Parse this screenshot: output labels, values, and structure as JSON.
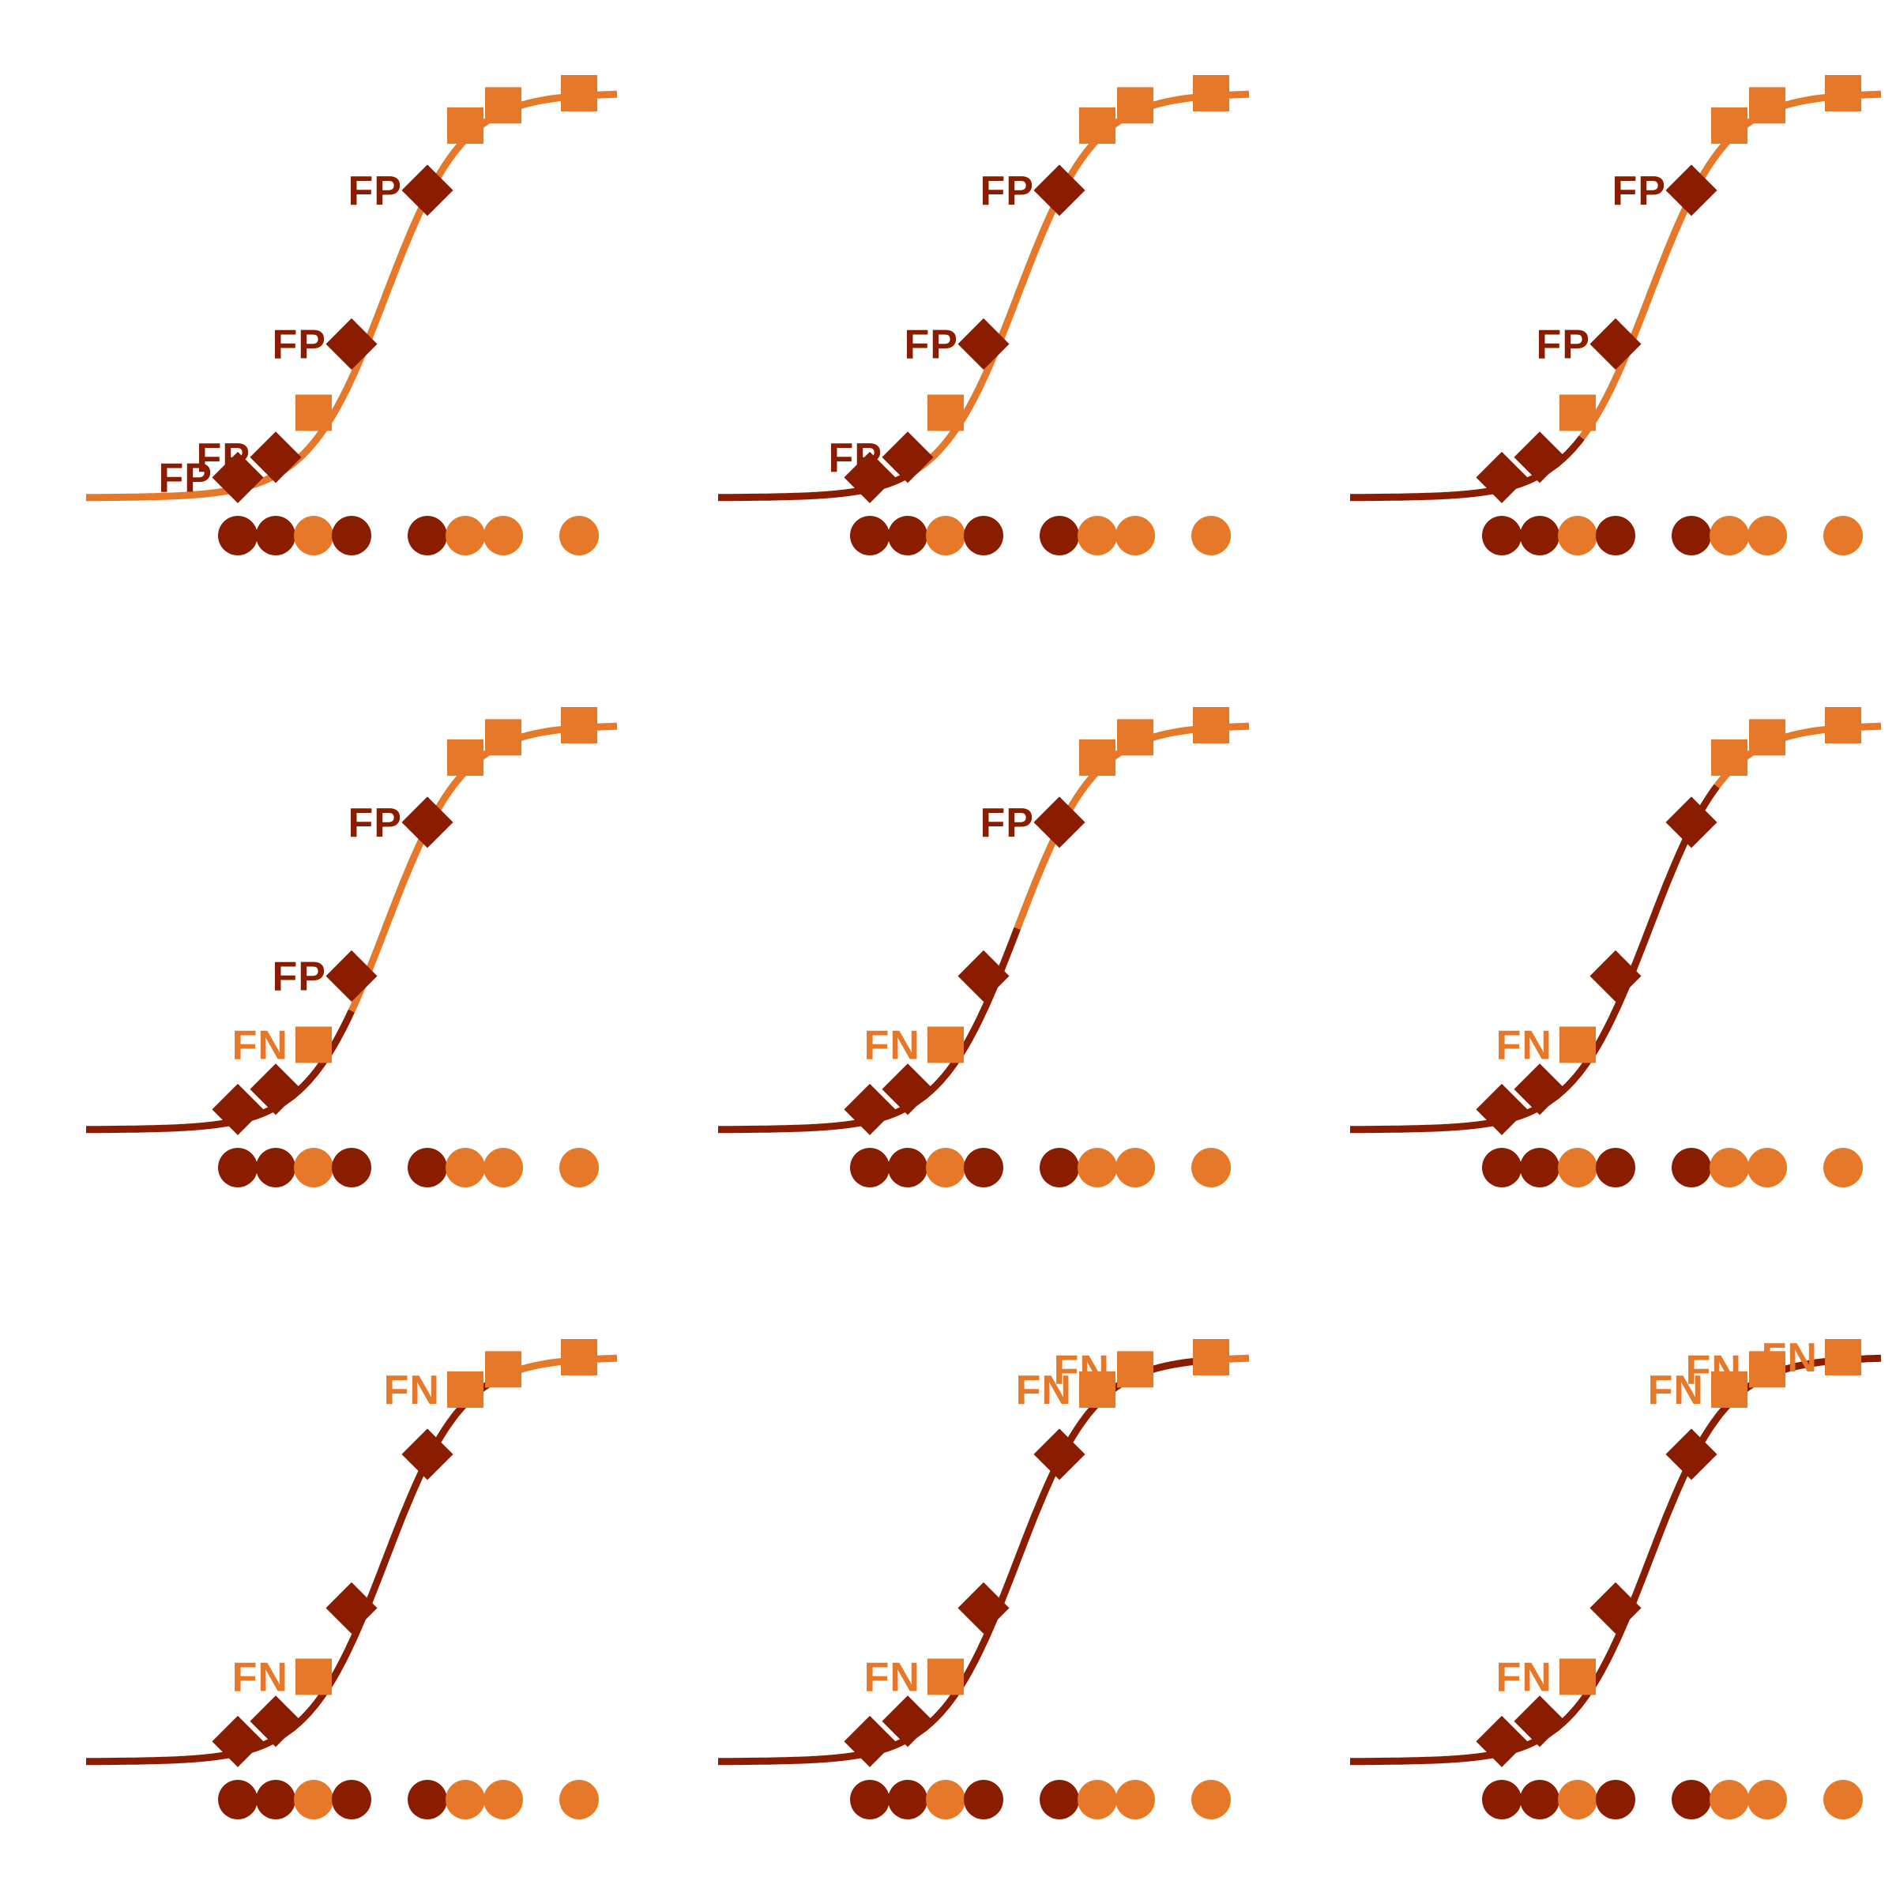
{
  "colors": {
    "negative": "#8a1c00",
    "positive": "#e67829",
    "background": "#ffffff"
  },
  "chart_data": {
    "type": "scatter",
    "layout": "3x3 small multiples",
    "title": "",
    "xlabel": "",
    "ylabel": "",
    "x_values": [
      1.0,
      1.5,
      2.0,
      2.5,
      3.5,
      4.0,
      4.5,
      5.5
    ],
    "true_classes": [
      "negative",
      "negative",
      "positive",
      "negative",
      "negative",
      "positive",
      "positive",
      "positive"
    ],
    "curve_values": [
      0.05,
      0.1,
      0.21,
      0.38,
      0.76,
      0.92,
      0.97,
      1.0
    ],
    "panels": [
      {
        "threshold": 0.0,
        "labels": [
          {
            "point": 0,
            "text": "FP"
          },
          {
            "point": 1,
            "text": "FP"
          },
          {
            "point": 3,
            "text": "FP"
          },
          {
            "point": 4,
            "text": "FP"
          }
        ]
      },
      {
        "threshold": 0.07,
        "labels": [
          {
            "point": 1,
            "text": "FP"
          },
          {
            "point": 3,
            "text": "FP"
          },
          {
            "point": 4,
            "text": "FP"
          }
        ]
      },
      {
        "threshold": 0.15,
        "labels": [
          {
            "point": 3,
            "text": "FP"
          },
          {
            "point": 4,
            "text": "FP"
          }
        ]
      },
      {
        "threshold": 0.3,
        "labels": [
          {
            "point": 2,
            "text": "FN"
          },
          {
            "point": 3,
            "text": "FP"
          },
          {
            "point": 4,
            "text": "FP"
          }
        ]
      },
      {
        "threshold": 0.5,
        "labels": [
          {
            "point": 2,
            "text": "FN"
          },
          {
            "point": 4,
            "text": "FP"
          }
        ]
      },
      {
        "threshold": 0.85,
        "labels": [
          {
            "point": 2,
            "text": "FN"
          }
        ]
      },
      {
        "threshold": 0.94,
        "labels": [
          {
            "point": 2,
            "text": "FN"
          },
          {
            "point": 5,
            "text": "FN"
          }
        ]
      },
      {
        "threshold": 0.99,
        "labels": [
          {
            "point": 2,
            "text": "FN"
          },
          {
            "point": 5,
            "text": "FN"
          },
          {
            "point": 6,
            "text": "FN"
          }
        ]
      },
      {
        "threshold": 1.01,
        "labels": [
          {
            "point": 2,
            "text": "FN"
          },
          {
            "point": 5,
            "text": "FN"
          },
          {
            "point": 6,
            "text": "FN"
          },
          {
            "point": 7,
            "text": "FN"
          }
        ]
      }
    ]
  }
}
